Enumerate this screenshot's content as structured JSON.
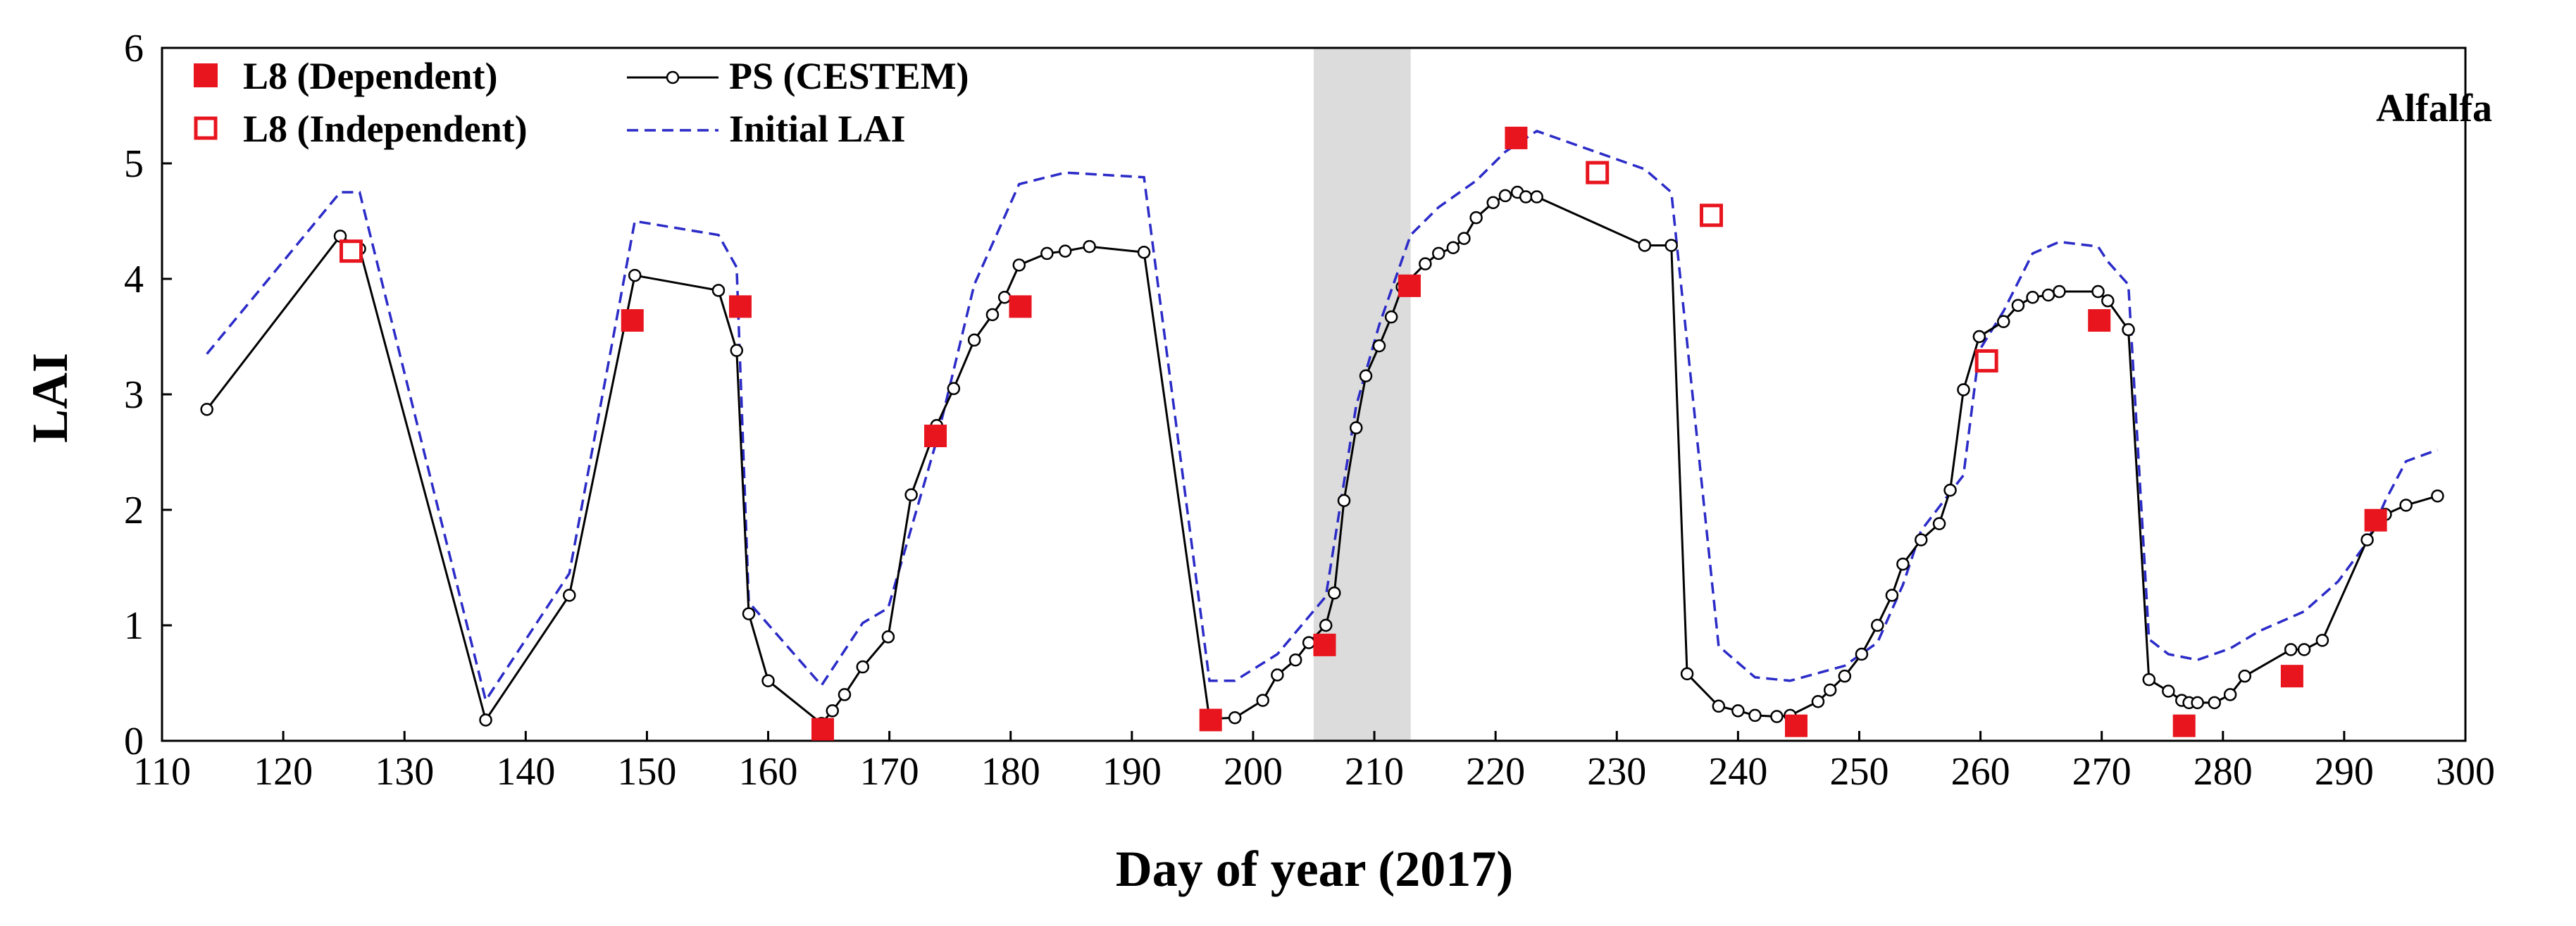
{
  "chart_data": {
    "type": "line",
    "xlabel": "Day of year (2017)",
    "ylabel": "LAI",
    "xlim": [
      110,
      300
    ],
    "ylim": [
      0,
      6
    ],
    "x_ticks": [
      110,
      120,
      130,
      140,
      150,
      160,
      170,
      180,
      190,
      200,
      210,
      220,
      230,
      240,
      250,
      260,
      270,
      280,
      290,
      300
    ],
    "y_ticks": [
      0,
      1,
      2,
      3,
      4,
      5,
      6
    ],
    "grid": false,
    "shaded_region": {
      "x_start": 205,
      "x_end": 213,
      "color": "#dcdcdc"
    },
    "annotation": "Alfalfa",
    "legend_position": "top-left",
    "colors": {
      "ps": "#000000",
      "initial": "#2b2bc8",
      "l8": "#e8141e"
    },
    "series": [
      {
        "name": "PS (CESTEM)",
        "style": "line-open-circles",
        "x": [
          113.7,
          124.7,
          126.3,
          136.7,
          143.6,
          149,
          155.9,
          157.4,
          158.4,
          160,
          164.4,
          165.3,
          166.3,
          167.8,
          169.9,
          171.8,
          173.9,
          175.3,
          177,
          178.5,
          179.5,
          180.7,
          183,
          184.5,
          186.5,
          191,
          196.4,
          198.5,
          200.8,
          202,
          203.5,
          204.6,
          206,
          206.7,
          207.5,
          208.5,
          209.3,
          210.4,
          211.4,
          212.3,
          214.2,
          215.3,
          216.5,
          217.4,
          218.4,
          219.8,
          220.8,
          221.8,
          222.5,
          223.4,
          232.3,
          234.5,
          235.8,
          238.4,
          240,
          241.4,
          243.2,
          244.3,
          246.6,
          247.6,
          248.8,
          250.2,
          251.5,
          252.7,
          253.6,
          255.1,
          256.6,
          257.5,
          258.6,
          259.9,
          261.9,
          263.1,
          264.3,
          265.6,
          266.5,
          269.7,
          270.5,
          272.2,
          273.9,
          275.5,
          276.6,
          277.2,
          277.9,
          279.3,
          280.6,
          281.8,
          285.6,
          286.7,
          288.2,
          291.9,
          293.4,
          295.1,
          297.7
        ],
        "y": [
          2.87,
          4.37,
          4.26,
          0.18,
          1.26,
          4.03,
          3.9,
          3.38,
          1.1,
          0.52,
          0.15,
          0.26,
          0.4,
          0.64,
          0.9,
          2.13,
          2.73,
          3.05,
          3.47,
          3.69,
          3.84,
          4.12,
          4.22,
          4.24,
          4.28,
          4.23,
          0.19,
          0.2,
          0.35,
          0.57,
          0.7,
          0.85,
          1.0,
          1.28,
          2.08,
          2.71,
          3.16,
          3.42,
          3.67,
          3.93,
          4.13,
          4.22,
          4.27,
          4.35,
          4.53,
          4.66,
          4.72,
          4.75,
          4.71,
          4.71,
          4.29,
          4.29,
          0.58,
          0.3,
          0.26,
          0.22,
          0.21,
          0.22,
          0.34,
          0.44,
          0.56,
          0.75,
          1.0,
          1.26,
          1.53,
          1.74,
          1.88,
          2.17,
          3.04,
          3.5,
          3.63,
          3.77,
          3.84,
          3.86,
          3.89,
          3.89,
          3.81,
          3.56,
          0.53,
          0.43,
          0.35,
          0.33,
          0.33,
          0.33,
          0.4,
          0.56,
          0.79,
          0.79,
          0.87,
          1.74,
          1.96,
          2.04,
          2.12
        ]
      },
      {
        "name": "Initial LAI",
        "style": "dashed",
        "x": [
          113.7,
          124.7,
          126.3,
          136.7,
          143.6,
          149,
          155.9,
          157.4,
          158.4,
          164.4,
          167.8,
          169.9,
          173.9,
          177,
          180.7,
          184.5,
          191,
          196.4,
          198.5,
          202,
          206,
          208.5,
          210.4,
          213,
          215.3,
          218.4,
          220.8,
          223.4,
          232.3,
          234.5,
          235.8,
          238.4,
          241.4,
          244.3,
          248.8,
          251.5,
          253.6,
          255.1,
          258.6,
          259.9,
          261.9,
          264.3,
          266.5,
          269.7,
          270.5,
          272.2,
          273.9,
          275.5,
          277.9,
          280.6,
          283,
          286.7,
          289.5,
          291.9,
          293.4,
          295.1,
          297.7
        ],
        "y": [
          3.35,
          4.75,
          4.75,
          0.35,
          1.45,
          4.5,
          4.38,
          4.1,
          1.2,
          0.48,
          1.02,
          1.15,
          2.6,
          3.95,
          4.82,
          4.92,
          4.88,
          0.52,
          0.52,
          0.75,
          1.25,
          2.9,
          3.6,
          4.38,
          4.62,
          4.85,
          5.1,
          5.28,
          4.95,
          4.75,
          3.45,
          0.82,
          0.55,
          0.52,
          0.65,
          0.85,
          1.35,
          1.82,
          2.3,
          3.38,
          3.72,
          4.22,
          4.32,
          4.28,
          4.15,
          3.95,
          0.88,
          0.75,
          0.7,
          0.8,
          0.95,
          1.12,
          1.38,
          1.72,
          2.08,
          2.42,
          2.52
        ]
      }
    ],
    "points": [
      {
        "name": "L8 (Dependent)",
        "marker": "filled-square",
        "x": [
          148.8,
          157.7,
          164.5,
          173.8,
          180.8,
          196.5,
          205.9,
          212.9,
          221.7,
          244.8,
          269.8,
          276.8,
          285.7,
          292.6
        ],
        "y": [
          3.64,
          3.76,
          0.1,
          2.64,
          3.76,
          0.18,
          0.83,
          3.94,
          5.22,
          0.13,
          3.64,
          0.13,
          0.56,
          1.91
        ]
      },
      {
        "name": "L8 (Independent)",
        "marker": "open-square",
        "x": [
          125.6,
          228.4,
          237.8,
          260.5
        ],
        "y": [
          4.24,
          4.92,
          4.55,
          3.29
        ]
      }
    ]
  }
}
